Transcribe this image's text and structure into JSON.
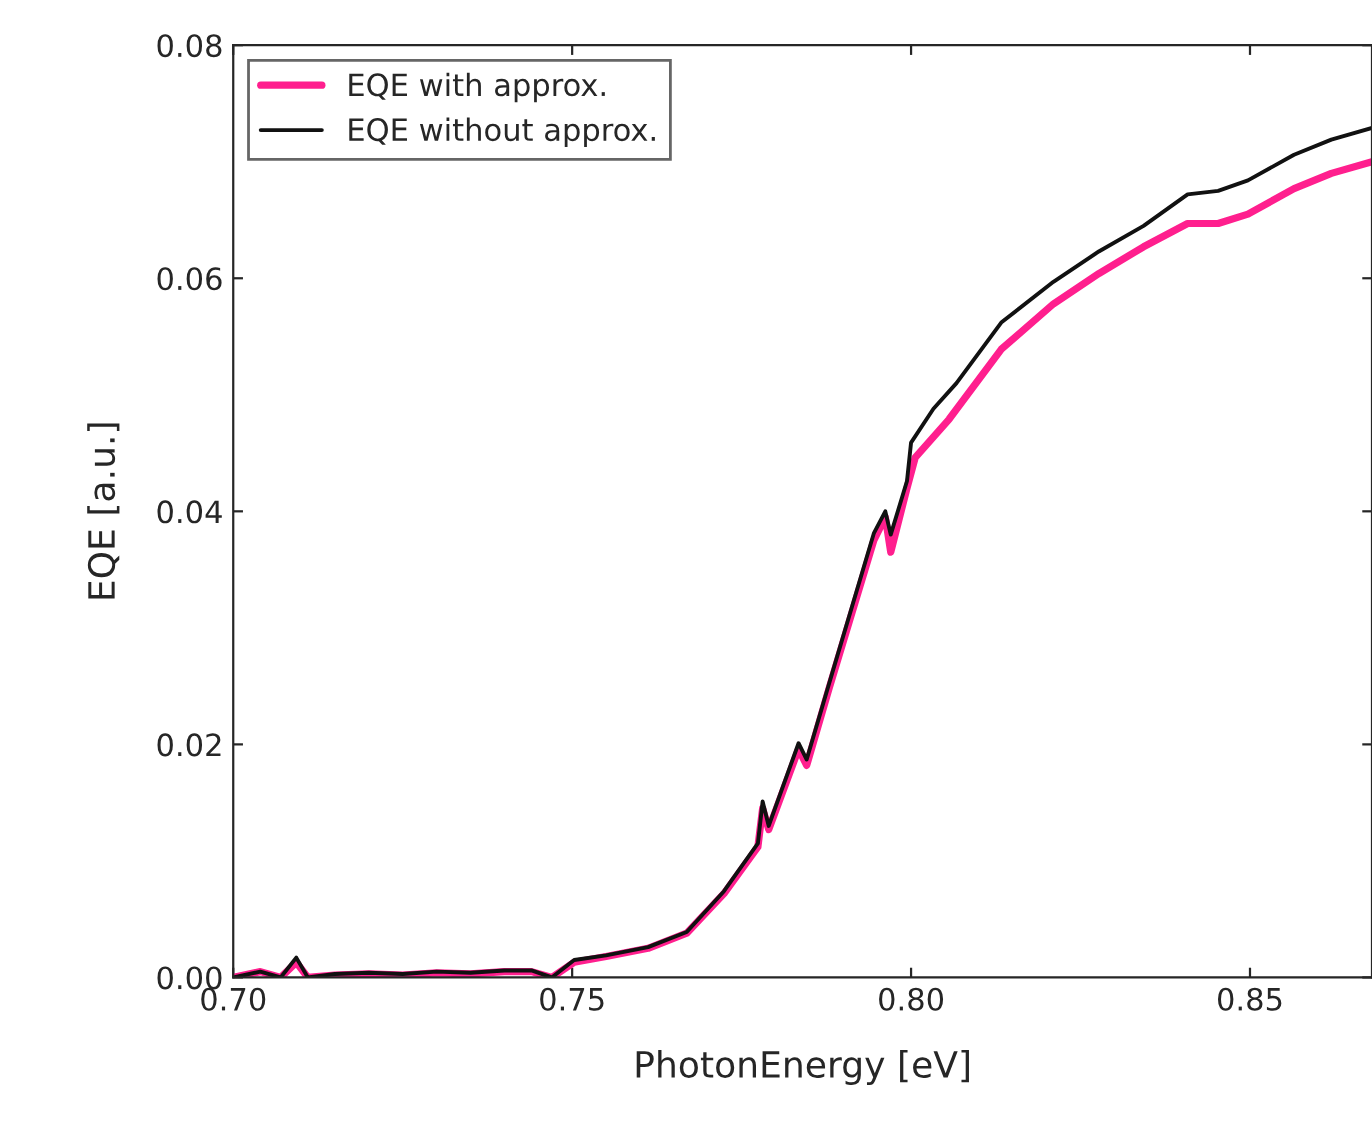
{
  "chart_data": {
    "type": "line",
    "xlabel": "PhotonEnergy [eV]",
    "ylabel": "EQE [a.u.]",
    "xlim": [
      0.7,
      0.868
    ],
    "ylim": [
      0,
      0.08
    ],
    "xticks": [
      {
        "value": 0.7,
        "label": "0.70"
      },
      {
        "value": 0.75,
        "label": "0.75"
      },
      {
        "value": 0.8,
        "label": "0.80"
      },
      {
        "value": 0.85,
        "label": "0.85"
      }
    ],
    "yticks": [
      {
        "value": 0,
        "label": "0.00"
      },
      {
        "value": 0.02,
        "label": "0.02"
      },
      {
        "value": 0.04,
        "label": "0.04"
      },
      {
        "value": 0.06,
        "label": "0.06"
      },
      {
        "value": 0.08,
        "label": "0.08"
      }
    ],
    "legend": "top left",
    "grid": false,
    "line_style": "solid",
    "marker": "none",
    "series": [
      {
        "name": "EQE with approx.",
        "color": "#ff1f8e",
        "x": [
          0.7,
          0.704,
          0.707,
          0.7093,
          0.711,
          0.715,
          0.72,
          0.725,
          0.73,
          0.735,
          0.74,
          0.744,
          0.747,
          0.7503,
          0.755,
          0.7612,
          0.7669,
          0.7724,
          0.7774,
          0.7781,
          0.779,
          0.7834,
          0.7846,
          0.7879,
          0.7945,
          0.7962,
          0.797,
          0.7994,
          0.8006,
          0.8056,
          0.8133,
          0.821,
          0.8277,
          0.8343,
          0.8408,
          0.8453,
          0.8497,
          0.8565,
          0.862,
          0.868
        ],
        "values": [
          0.0,
          0.0005,
          0.0,
          0.0013,
          0.0,
          0.0002,
          0.0003,
          0.0002,
          0.0004,
          0.0003,
          0.0005,
          0.0005,
          0.0,
          0.0013,
          0.0018,
          0.0025,
          0.0038,
          0.0072,
          0.0112,
          0.0145,
          0.0127,
          0.0196,
          0.0182,
          0.0248,
          0.0375,
          0.0395,
          0.0365,
          0.042,
          0.0446,
          0.0479,
          0.0539,
          0.0578,
          0.0604,
          0.0627,
          0.0647,
          0.0647,
          0.0655,
          0.0677,
          0.069,
          0.07
        ]
      },
      {
        "name": "EQE without approx.",
        "color": "#111111",
        "x": [
          0.7,
          0.704,
          0.707,
          0.7093,
          0.711,
          0.715,
          0.72,
          0.725,
          0.73,
          0.735,
          0.74,
          0.744,
          0.747,
          0.7503,
          0.755,
          0.7612,
          0.7669,
          0.7724,
          0.7774,
          0.7781,
          0.779,
          0.7834,
          0.7846,
          0.7879,
          0.7945,
          0.7962,
          0.797,
          0.7994,
          0.8,
          0.8033,
          0.8067,
          0.8133,
          0.821,
          0.8277,
          0.8343,
          0.8408,
          0.8453,
          0.8497,
          0.8565,
          0.862,
          0.868
        ],
        "values": [
          0.0,
          0.0005,
          0.0,
          0.0017,
          0.0,
          0.0003,
          0.0004,
          0.0003,
          0.0005,
          0.0004,
          0.0006,
          0.0006,
          0.0,
          0.0015,
          0.0019,
          0.0026,
          0.0039,
          0.0074,
          0.0115,
          0.0151,
          0.013,
          0.0201,
          0.0187,
          0.0252,
          0.0381,
          0.04,
          0.038,
          0.0426,
          0.0459,
          0.0488,
          0.051,
          0.0562,
          0.0597,
          0.0623,
          0.0645,
          0.0672,
          0.0675,
          0.0684,
          0.0706,
          0.0719,
          0.0729
        ]
      }
    ]
  }
}
